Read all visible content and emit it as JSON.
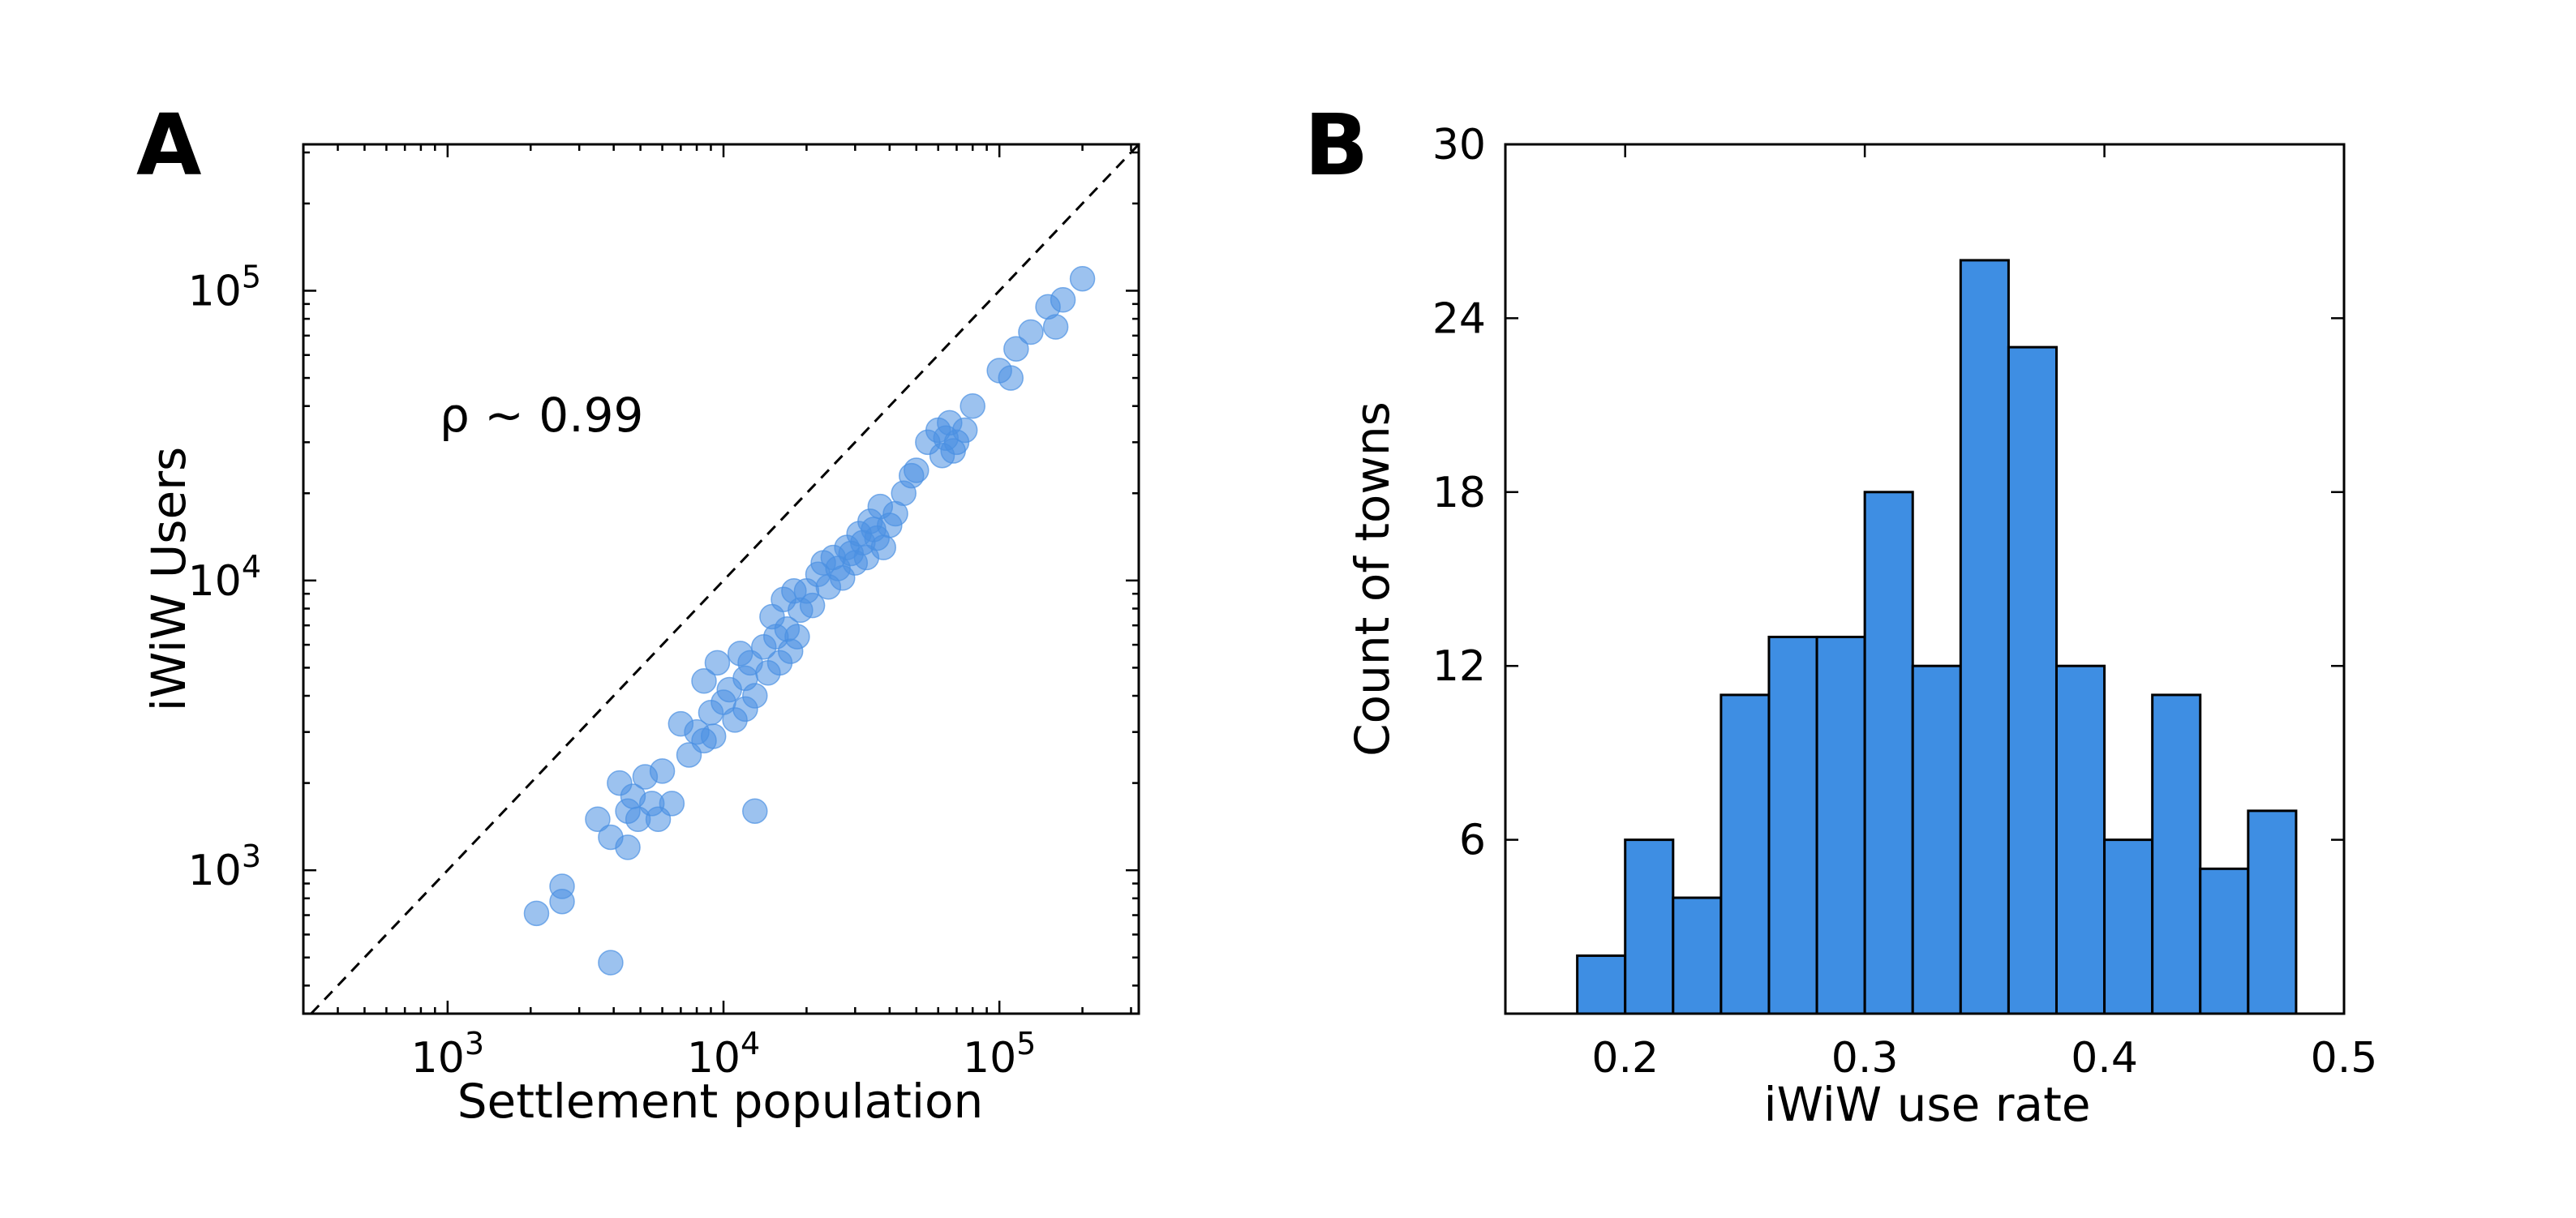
{
  "chart_data": [
    {
      "type": "scatter",
      "panel_label": "A",
      "xlabel": "Settlement population",
      "ylabel": "iWiW Users",
      "xscale": "log",
      "yscale": "log",
      "xlim": [
        300,
        320000
      ],
      "ylim": [
        320,
        320000
      ],
      "xticks": [
        {
          "value": 1000,
          "label": "10",
          "exp": "3"
        },
        {
          "value": 10000,
          "label": "10",
          "exp": "4"
        },
        {
          "value": 100000,
          "label": "10",
          "exp": "5"
        }
      ],
      "yticks": [
        {
          "value": 1000,
          "label": "10",
          "exp": "3"
        },
        {
          "value": 10000,
          "label": "10",
          "exp": "4"
        },
        {
          "value": 100000,
          "label": "10",
          "exp": "5"
        }
      ],
      "annotation": "ρ ~ 0.99",
      "reference_line": "y = x (dashed)",
      "marker_color": "#4a90e2",
      "points": [
        [
          2100,
          710
        ],
        [
          2600,
          880
        ],
        [
          2600,
          780
        ],
        [
          3900,
          480
        ],
        [
          3500,
          1500
        ],
        [
          3900,
          1300
        ],
        [
          4200,
          2000
        ],
        [
          4500,
          1200
        ],
        [
          4500,
          1600
        ],
        [
          4700,
          1800
        ],
        [
          4900,
          1500
        ],
        [
          5200,
          2100
        ],
        [
          5500,
          1700
        ],
        [
          5800,
          1500
        ],
        [
          6000,
          2200
        ],
        [
          6500,
          1700
        ],
        [
          7000,
          3200
        ],
        [
          7500,
          2500
        ],
        [
          8000,
          3000
        ],
        [
          8500,
          2800
        ],
        [
          8500,
          4500
        ],
        [
          9000,
          3500
        ],
        [
          9200,
          2900
        ],
        [
          9500,
          5200
        ],
        [
          10000,
          3800
        ],
        [
          10500,
          4200
        ],
        [
          11000,
          3300
        ],
        [
          11500,
          5600
        ],
        [
          12000,
          4600
        ],
        [
          12500,
          5200
        ],
        [
          12000,
          3600
        ],
        [
          13000,
          4000
        ],
        [
          13000,
          1600
        ],
        [
          14000,
          5900
        ],
        [
          14500,
          4800
        ],
        [
          15000,
          7500
        ],
        [
          15500,
          6400
        ],
        [
          16000,
          5200
        ],
        [
          16500,
          8600
        ],
        [
          17000,
          6800
        ],
        [
          17500,
          5700
        ],
        [
          18000,
          9200
        ],
        [
          18500,
          6400
        ],
        [
          19000,
          7900
        ],
        [
          20000,
          9200
        ],
        [
          21000,
          8200
        ],
        [
          22000,
          10500
        ],
        [
          23000,
          11500
        ],
        [
          24000,
          9500
        ],
        [
          25000,
          12000
        ],
        [
          26000,
          11000
        ],
        [
          27000,
          10200
        ],
        [
          28000,
          13000
        ],
        [
          29000,
          12400
        ],
        [
          30000,
          11500
        ],
        [
          31000,
          14500
        ],
        [
          32000,
          13500
        ],
        [
          33000,
          12000
        ],
        [
          34000,
          16000
        ],
        [
          35000,
          15000
        ],
        [
          36000,
          14000
        ],
        [
          37000,
          18000
        ],
        [
          38000,
          13000
        ],
        [
          40000,
          15500
        ],
        [
          42000,
          17000
        ],
        [
          45000,
          20000
        ],
        [
          48000,
          23000
        ],
        [
          50000,
          24000
        ],
        [
          55000,
          30000
        ],
        [
          60000,
          33000
        ],
        [
          62000,
          27000
        ],
        [
          64000,
          31000
        ],
        [
          66000,
          35000
        ],
        [
          68000,
          28000
        ],
        [
          70000,
          30000
        ],
        [
          75000,
          33000
        ],
        [
          80000,
          40000
        ],
        [
          100000,
          53000
        ],
        [
          110000,
          50000
        ],
        [
          115000,
          63000
        ],
        [
          130000,
          72000
        ],
        [
          150000,
          88000
        ],
        [
          160000,
          75000
        ],
        [
          170000,
          93000
        ],
        [
          200000,
          110000
        ]
      ]
    },
    {
      "type": "bar",
      "subtype": "histogram",
      "panel_label": "B",
      "xlabel": "iWiW use rate",
      "ylabel": "Count of towns",
      "xlim": [
        0.15,
        0.5
      ],
      "ylim": [
        0,
        30
      ],
      "xticks": [
        "0.2",
        "0.3",
        "0.4",
        "0.5"
      ],
      "yticks": [
        "6",
        "12",
        "18",
        "24",
        "30"
      ],
      "bar_color": "#3e8ee3",
      "bins": [
        {
          "x0": 0.18,
          "x1": 0.2,
          "count": 2
        },
        {
          "x0": 0.2,
          "x1": 0.22,
          "count": 6
        },
        {
          "x0": 0.22,
          "x1": 0.24,
          "count": 4
        },
        {
          "x0": 0.24,
          "x1": 0.26,
          "count": 11
        },
        {
          "x0": 0.26,
          "x1": 0.28,
          "count": 13
        },
        {
          "x0": 0.28,
          "x1": 0.3,
          "count": 13
        },
        {
          "x0": 0.3,
          "x1": 0.32,
          "count": 18
        },
        {
          "x0": 0.32,
          "x1": 0.34,
          "count": 12
        },
        {
          "x0": 0.34,
          "x1": 0.36,
          "count": 26
        },
        {
          "x0": 0.36,
          "x1": 0.38,
          "count": 23
        },
        {
          "x0": 0.38,
          "x1": 0.4,
          "count": 12
        },
        {
          "x0": 0.4,
          "x1": 0.42,
          "count": 6
        },
        {
          "x0": 0.42,
          "x1": 0.44,
          "count": 11
        },
        {
          "x0": 0.44,
          "x1": 0.46,
          "count": 5
        },
        {
          "x0": 0.46,
          "x1": 0.48,
          "count": 7
        }
      ]
    }
  ]
}
